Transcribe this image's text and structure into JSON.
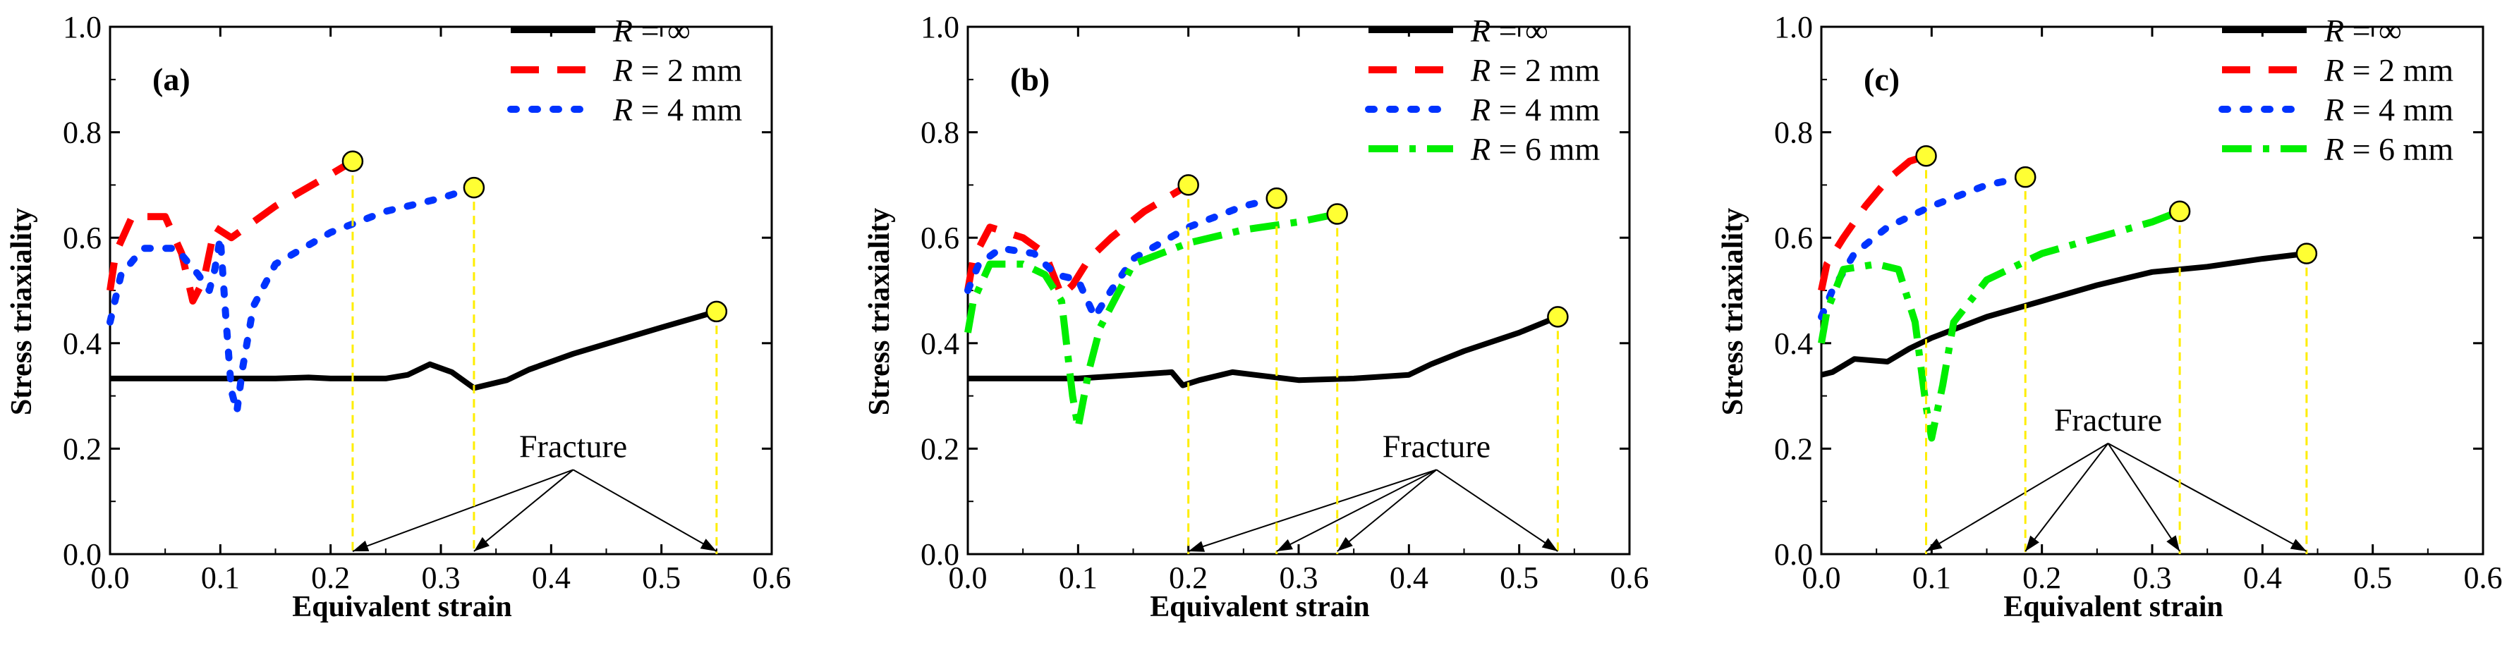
{
  "colors": {
    "inf": "#000000",
    "r2": "#ff0000",
    "r4": "#0033ff",
    "r6": "#00ee00",
    "marker_fill": "#ffff33",
    "guide": "#ffee00"
  },
  "legend_labels": {
    "inf": {
      "R": "R",
      "rest": " = ∞"
    },
    "r2": {
      "R": "R",
      "rest": " = 2 mm"
    },
    "r4": {
      "R": "R",
      "rest": " = 4 mm"
    },
    "r6": {
      "R": "R",
      "rest": " = 6 mm"
    }
  },
  "chart_data": [
    {
      "type": "line",
      "panel_label": "(a)",
      "xlabel": "Equivalent strain",
      "ylabel": "Stress triaxiality",
      "xlim": [
        0.0,
        0.6
      ],
      "ylim": [
        0.0,
        1.0
      ],
      "x_ticks": [
        "0.0",
        "0.1",
        "0.2",
        "0.3",
        "0.4",
        "0.5",
        "0.6"
      ],
      "y_ticks": [
        "0.0",
        "0.2",
        "0.4",
        "0.6",
        "0.8",
        "1.0"
      ],
      "annotation": "Fracture",
      "annotation_origin": [
        0.42,
        0.16
      ],
      "legend": [
        "inf",
        "r2",
        "r4"
      ],
      "series": [
        {
          "key": "inf",
          "fracture": [
            0.55,
            0.46
          ],
          "points": [
            [
              0,
              0.333
            ],
            [
              0.05,
              0.333
            ],
            [
              0.1,
              0.333
            ],
            [
              0.15,
              0.333
            ],
            [
              0.18,
              0.335
            ],
            [
              0.2,
              0.333
            ],
            [
              0.25,
              0.333
            ],
            [
              0.27,
              0.34
            ],
            [
              0.29,
              0.36
            ],
            [
              0.31,
              0.345
            ],
            [
              0.33,
              0.315
            ],
            [
              0.34,
              0.32
            ],
            [
              0.36,
              0.33
            ],
            [
              0.38,
              0.35
            ],
            [
              0.42,
              0.38
            ],
            [
              0.46,
              0.405
            ],
            [
              0.5,
              0.43
            ],
            [
              0.55,
              0.46
            ]
          ]
        },
        {
          "key": "r2",
          "fracture": [
            0.22,
            0.745
          ],
          "points": [
            [
              0,
              0.5
            ],
            [
              0.005,
              0.57
            ],
            [
              0.02,
              0.64
            ],
            [
              0.05,
              0.64
            ],
            [
              0.065,
              0.57
            ],
            [
              0.075,
              0.48
            ],
            [
              0.085,
              0.52
            ],
            [
              0.095,
              0.62
            ],
            [
              0.11,
              0.6
            ],
            [
              0.15,
              0.66
            ],
            [
              0.2,
              0.72
            ],
            [
              0.22,
              0.745
            ]
          ]
        },
        {
          "key": "r4",
          "fracture": [
            0.33,
            0.695
          ],
          "points": [
            [
              0,
              0.44
            ],
            [
              0.01,
              0.53
            ],
            [
              0.03,
              0.58
            ],
            [
              0.06,
              0.58
            ],
            [
              0.08,
              0.53
            ],
            [
              0.09,
              0.5
            ],
            [
              0.095,
              0.54
            ],
            [
              0.1,
              0.6
            ],
            [
              0.105,
              0.45
            ],
            [
              0.11,
              0.31
            ],
            [
              0.115,
              0.27
            ],
            [
              0.12,
              0.35
            ],
            [
              0.13,
              0.47
            ],
            [
              0.15,
              0.55
            ],
            [
              0.2,
              0.61
            ],
            [
              0.25,
              0.65
            ],
            [
              0.3,
              0.675
            ],
            [
              0.33,
              0.695
            ]
          ]
        }
      ]
    },
    {
      "type": "line",
      "panel_label": "(b)",
      "xlabel": "Equivalent strain",
      "ylabel": "Stress triaxiality",
      "xlim": [
        0.0,
        0.6
      ],
      "ylim": [
        0.0,
        1.0
      ],
      "x_ticks": [
        "0.0",
        "0.1",
        "0.2",
        "0.3",
        "0.4",
        "0.5",
        "0.6"
      ],
      "y_ticks": [
        "0.0",
        "0.2",
        "0.4",
        "0.6",
        "0.8",
        "1.0"
      ],
      "annotation": "Fracture",
      "annotation_origin": [
        0.425,
        0.16
      ],
      "legend": [
        "inf",
        "r2",
        "r4",
        "r6"
      ],
      "series": [
        {
          "key": "inf",
          "fracture": [
            0.535,
            0.45
          ],
          "points": [
            [
              0,
              0.333
            ],
            [
              0.05,
              0.333
            ],
            [
              0.1,
              0.333
            ],
            [
              0.15,
              0.34
            ],
            [
              0.185,
              0.345
            ],
            [
              0.195,
              0.32
            ],
            [
              0.21,
              0.33
            ],
            [
              0.24,
              0.345
            ],
            [
              0.26,
              0.34
            ],
            [
              0.3,
              0.33
            ],
            [
              0.35,
              0.333
            ],
            [
              0.4,
              0.34
            ],
            [
              0.42,
              0.36
            ],
            [
              0.45,
              0.385
            ],
            [
              0.5,
              0.42
            ],
            [
              0.535,
              0.45
            ]
          ]
        },
        {
          "key": "r2",
          "fracture": [
            0.2,
            0.7
          ],
          "points": [
            [
              0,
              0.5
            ],
            [
              0.005,
              0.56
            ],
            [
              0.02,
              0.62
            ],
            [
              0.05,
              0.6
            ],
            [
              0.07,
              0.57
            ],
            [
              0.085,
              0.49
            ],
            [
              0.095,
              0.51
            ],
            [
              0.11,
              0.56
            ],
            [
              0.13,
              0.6
            ],
            [
              0.16,
              0.65
            ],
            [
              0.2,
              0.7
            ]
          ]
        },
        {
          "key": "r4",
          "fracture": [
            0.28,
            0.675
          ],
          "points": [
            [
              0,
              0.5
            ],
            [
              0.01,
              0.55
            ],
            [
              0.03,
              0.58
            ],
            [
              0.06,
              0.57
            ],
            [
              0.08,
              0.53
            ],
            [
              0.1,
              0.52
            ],
            [
              0.115,
              0.45
            ],
            [
              0.13,
              0.5
            ],
            [
              0.15,
              0.56
            ],
            [
              0.2,
              0.62
            ],
            [
              0.25,
              0.66
            ],
            [
              0.28,
              0.675
            ]
          ]
        },
        {
          "key": "r6",
          "fracture": [
            0.335,
            0.645
          ],
          "points": [
            [
              0,
              0.42
            ],
            [
              0.005,
              0.48
            ],
            [
              0.02,
              0.55
            ],
            [
              0.05,
              0.55
            ],
            [
              0.07,
              0.53
            ],
            [
              0.085,
              0.48
            ],
            [
              0.095,
              0.3
            ],
            [
              0.1,
              0.24
            ],
            [
              0.11,
              0.35
            ],
            [
              0.12,
              0.43
            ],
            [
              0.15,
              0.55
            ],
            [
              0.2,
              0.59
            ],
            [
              0.25,
              0.615
            ],
            [
              0.3,
              0.63
            ],
            [
              0.335,
              0.645
            ]
          ]
        }
      ]
    },
    {
      "type": "line",
      "panel_label": "(c)",
      "xlabel": "Equivalent strain",
      "ylabel": "Stress triaxiality",
      "xlim": [
        0.0,
        0.6
      ],
      "ylim": [
        0.0,
        1.0
      ],
      "x_ticks": [
        "0.0",
        "0.1",
        "0.2",
        "0.3",
        "0.4",
        "0.5",
        "0.6"
      ],
      "y_ticks": [
        "0.0",
        "0.2",
        "0.4",
        "0.6",
        "0.8",
        "1.0"
      ],
      "annotation": "Fracture",
      "annotation_origin": [
        0.26,
        0.21
      ],
      "legend": [
        "inf",
        "r2",
        "r4",
        "r6"
      ],
      "series": [
        {
          "key": "inf",
          "fracture": [
            0.44,
            0.57
          ],
          "points": [
            [
              0,
              0.34
            ],
            [
              0.01,
              0.345
            ],
            [
              0.03,
              0.37
            ],
            [
              0.06,
              0.365
            ],
            [
              0.08,
              0.39
            ],
            [
              0.1,
              0.41
            ],
            [
              0.15,
              0.45
            ],
            [
              0.2,
              0.48
            ],
            [
              0.25,
              0.51
            ],
            [
              0.3,
              0.535
            ],
            [
              0.35,
              0.545
            ],
            [
              0.4,
              0.56
            ],
            [
              0.44,
              0.57
            ]
          ]
        },
        {
          "key": "r2",
          "fracture": [
            0.095,
            0.755
          ],
          "points": [
            [
              0,
              0.5
            ],
            [
              0.005,
              0.55
            ],
            [
              0.02,
              0.6
            ],
            [
              0.04,
              0.66
            ],
            [
              0.06,
              0.71
            ],
            [
              0.08,
              0.745
            ],
            [
              0.095,
              0.755
            ]
          ]
        },
        {
          "key": "r4",
          "fracture": [
            0.185,
            0.715
          ],
          "points": [
            [
              0,
              0.45
            ],
            [
              0.01,
              0.5
            ],
            [
              0.03,
              0.57
            ],
            [
              0.06,
              0.62
            ],
            [
              0.1,
              0.66
            ],
            [
              0.15,
              0.7
            ],
            [
              0.185,
              0.715
            ]
          ]
        },
        {
          "key": "r6",
          "fracture": [
            0.325,
            0.65
          ],
          "points": [
            [
              0,
              0.4
            ],
            [
              0.005,
              0.46
            ],
            [
              0.02,
              0.54
            ],
            [
              0.05,
              0.55
            ],
            [
              0.07,
              0.54
            ],
            [
              0.085,
              0.44
            ],
            [
              0.095,
              0.28
            ],
            [
              0.1,
              0.22
            ],
            [
              0.11,
              0.32
            ],
            [
              0.12,
              0.44
            ],
            [
              0.15,
              0.52
            ],
            [
              0.2,
              0.57
            ],
            [
              0.25,
              0.6
            ],
            [
              0.3,
              0.63
            ],
            [
              0.325,
              0.65
            ]
          ]
        }
      ]
    }
  ]
}
